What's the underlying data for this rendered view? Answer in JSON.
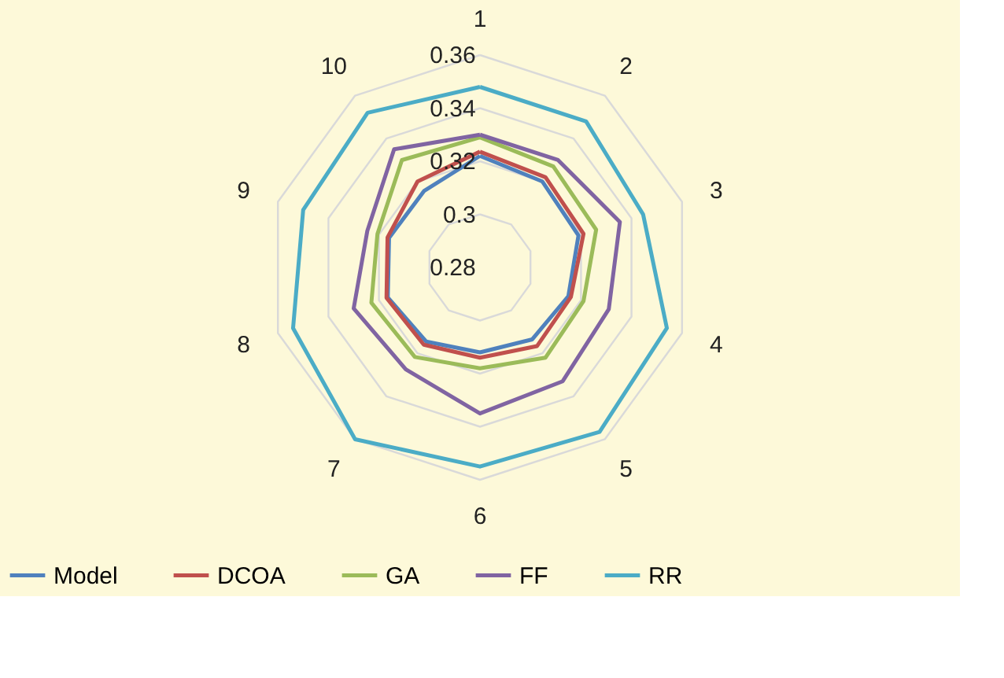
{
  "chart_data": {
    "type": "radar",
    "categories": [
      "1",
      "2",
      "3",
      "4",
      "5",
      "6",
      "7",
      "8",
      "9",
      "10"
    ],
    "ylim": [
      0.28,
      0.36
    ],
    "yticks": [
      0.28,
      0.3,
      0.32,
      0.34,
      0.36
    ],
    "grid": true,
    "legend": "bottom",
    "series": [
      {
        "name": "Model",
        "color": "#4f81bd",
        "values": [
          0.322,
          0.32,
          0.319,
          0.315,
          0.3135,
          0.312,
          0.3145,
          0.3165,
          0.316,
          0.3157
        ]
      },
      {
        "name": "DCOA",
        "color": "#c0504d",
        "values": [
          0.3236,
          0.322,
          0.321,
          0.316,
          0.3166,
          0.314,
          0.316,
          0.317,
          0.3166,
          0.32
        ]
      },
      {
        "name": "GA",
        "color": "#9bbb59",
        "values": [
          0.329,
          0.327,
          0.326,
          0.321,
          0.322,
          0.318,
          0.3217,
          0.323,
          0.3206,
          0.33
        ]
      },
      {
        "name": "FF",
        "color": "#8064a2",
        "values": [
          0.33,
          0.33,
          0.3354,
          0.331,
          0.333,
          0.335,
          0.3275,
          0.33,
          0.3246,
          0.335
        ]
      },
      {
        "name": "RR",
        "color": "#4bacc6",
        "values": [
          0.348,
          0.348,
          0.3446,
          0.354,
          0.3566,
          0.355,
          0.36,
          0.354,
          0.35,
          0.352
        ]
      }
    ]
  }
}
